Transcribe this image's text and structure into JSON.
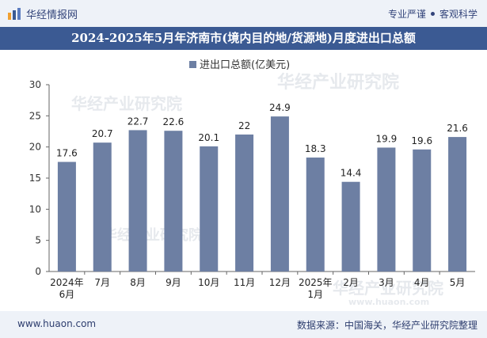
{
  "header": {
    "brand": "华经情报网",
    "tagline_left": "专业严谨",
    "tagline_right": "客观科学"
  },
  "title": "2024-2025年5月年济南市(境内目的地/货源地)月度进出口总额",
  "legend_label": "进出口总额(亿美元)",
  "watermark": "华经产业研究院",
  "watermark_url": "www.huaon.com",
  "footer": {
    "url": "www.huaon.com",
    "source": "数据来源：中国海关，华经产业研究院整理"
  },
  "colors": {
    "bar": "#6d7fa3",
    "header_bg": "#eef2f8",
    "title_bg": "#3b5a93",
    "brand": "#33447a"
  },
  "chart_data": {
    "type": "bar",
    "categories": [
      "2024年\n6月",
      "7月",
      "8月",
      "9月",
      "10月",
      "11月",
      "12月",
      "2025年\n1月",
      "2月",
      "3月",
      "4月",
      "5月"
    ],
    "series": [
      {
        "name": "进出口总额(亿美元)",
        "values": [
          17.6,
          20.7,
          22.7,
          22.6,
          20.1,
          22,
          24.9,
          18.3,
          14.4,
          19.9,
          19.6,
          21.6
        ]
      }
    ],
    "value_labels": [
      "17.6",
      "20.7",
      "22.7",
      "22.6",
      "20.1",
      "22",
      "24.9",
      "18.3",
      "14.4",
      "19.9",
      "19.6",
      "21.6"
    ],
    "yticks": [
      "0",
      "5",
      "10",
      "15",
      "20",
      "25",
      "30"
    ],
    "ylim": [
      0,
      30
    ],
    "legend_position": "top-center",
    "grid": false
  }
}
